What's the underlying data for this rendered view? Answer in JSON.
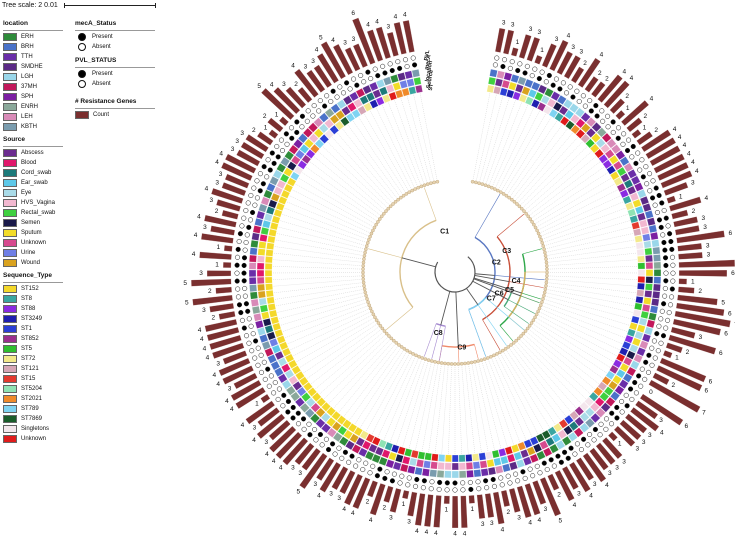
{
  "tree_scale": {
    "label": "Tree scale: 2",
    "value": "0.01"
  },
  "legends": {
    "location": {
      "title": "location",
      "items": [
        {
          "label": "ERH",
          "color": "#2e8b3a"
        },
        {
          "label": "BRH",
          "color": "#4a72c9"
        },
        {
          "label": "TTH",
          "color": "#6a2ea8"
        },
        {
          "label": "SMDHE",
          "color": "#5b2a86"
        },
        {
          "label": "LGH",
          "color": "#9ad7ea"
        },
        {
          "label": "37MH",
          "color": "#c2185b"
        },
        {
          "label": "SPH",
          "color": "#7b1fa2"
        },
        {
          "label": "ENRH",
          "color": "#8aa89a"
        },
        {
          "label": "LEH",
          "color": "#d98ab8"
        },
        {
          "label": "KBTH",
          "color": "#7a9cae"
        }
      ]
    },
    "source": {
      "title": "Source",
      "items": [
        {
          "label": "Abscess",
          "color": "#6b2c8f"
        },
        {
          "label": "Blood",
          "color": "#e0176b"
        },
        {
          "label": "Cord_swab",
          "color": "#1d7a7a"
        },
        {
          "label": "Ear_swab",
          "color": "#5ec8e8"
        },
        {
          "label": "Eye",
          "color": "#a9dbe8"
        },
        {
          "label": "HVS_Vagina",
          "color": "#f2b8d0"
        },
        {
          "label": "Rectal_swab",
          "color": "#3fd03f"
        },
        {
          "label": "Semen",
          "color": "#1a1a4a"
        },
        {
          "label": "Sputum",
          "color": "#f2dc28"
        },
        {
          "label": "Unknown",
          "color": "#d64a8e"
        },
        {
          "label": "Urine",
          "color": "#6f7fe6"
        },
        {
          "label": "Wound",
          "color": "#d9a21e"
        }
      ]
    },
    "sequence_type": {
      "title": "Sequence_Type",
      "items": [
        {
          "label": "ST152",
          "color": "#f4d82a"
        },
        {
          "label": "ST8",
          "color": "#3aa6a0"
        },
        {
          "label": "ST88",
          "color": "#8a2be2"
        },
        {
          "label": "ST3249",
          "color": "#1f1fb0"
        },
        {
          "label": "ST1",
          "color": "#2b3fd6"
        },
        {
          "label": "ST852",
          "color": "#9b2f8e"
        },
        {
          "label": "ST5",
          "color": "#2fbf2f"
        },
        {
          "label": "ST72",
          "color": "#f3e98a"
        },
        {
          "label": "ST121",
          "color": "#d6a6b6"
        },
        {
          "label": "ST15",
          "color": "#e33a2e"
        },
        {
          "label": "ST5204",
          "color": "#8fe3b4"
        },
        {
          "label": "ST2021",
          "color": "#f08a2a"
        },
        {
          "label": "ST789",
          "color": "#7fd3f2"
        },
        {
          "label": "ST7869",
          "color": "#1a5c2a"
        },
        {
          "label": "Singletons",
          "color": "#f4e6ec"
        },
        {
          "label": "Unknown",
          "color": "#e01b1b"
        }
      ]
    },
    "meca": {
      "title": "mecA_Status",
      "items": [
        {
          "label": "Present",
          "filled": true
        },
        {
          "label": "Absent",
          "filled": false
        }
      ]
    },
    "pvl": {
      "title": "PVL_STATUS",
      "items": [
        {
          "label": "Present",
          "filled": true
        },
        {
          "label": "Absent",
          "filled": false
        }
      ]
    },
    "resistance": {
      "title": "# Resistance Genes",
      "items": [
        {
          "label": "Count",
          "color": "#7a2f2f"
        }
      ]
    }
  },
  "ring_labels": {
    "pvl": "PVL",
    "meca": "mecA",
    "st": "ST",
    "source": "Source",
    "location": "location"
  },
  "clade_labels": [
    "C1",
    "C2",
    "C3",
    "C4",
    "C5",
    "C6",
    "C7",
    "C8",
    "C9"
  ],
  "colors": {
    "bar": "#7a2f2f",
    "branch": "#555555",
    "grid": "#c8c8c8"
  },
  "resistance_counts": [
    3,
    3,
    1,
    3,
    3,
    1,
    3,
    4,
    3,
    3,
    2,
    4,
    2,
    2,
    4,
    4,
    2,
    1,
    4,
    2,
    1,
    2,
    4,
    4,
    4,
    4,
    4,
    4,
    3,
    1,
    4,
    2,
    3,
    3,
    6,
    3,
    3,
    7,
    6,
    1,
    2,
    5,
    6,
    7,
    6,
    3,
    6,
    2,
    1,
    6,
    6,
    2,
    7,
    0,
    6,
    3,
    4,
    3,
    3,
    3,
    1,
    3,
    3,
    3,
    4,
    3,
    4,
    3,
    4,
    2,
    5,
    3,
    4,
    4,
    3,
    2,
    4,
    3,
    3,
    1,
    4,
    4,
    1,
    4,
    4,
    4,
    3,
    1,
    3,
    2,
    4,
    2,
    4,
    4,
    3,
    3,
    4,
    3,
    5,
    3,
    3,
    4,
    4,
    4,
    3,
    4,
    3,
    4,
    1,
    4,
    4,
    3,
    4,
    4,
    3,
    4,
    4,
    4,
    4,
    2,
    3,
    5,
    2,
    5,
    3,
    1,
    4,
    1,
    4,
    3,
    4,
    2,
    3,
    4,
    3,
    3,
    4,
    4,
    3,
    3,
    3,
    2,
    1,
    2,
    1,
    5,
    4,
    3,
    2,
    4,
    3,
    3,
    4,
    5,
    4,
    3,
    3,
    6,
    4,
    4,
    3,
    4,
    4
  ]
}
